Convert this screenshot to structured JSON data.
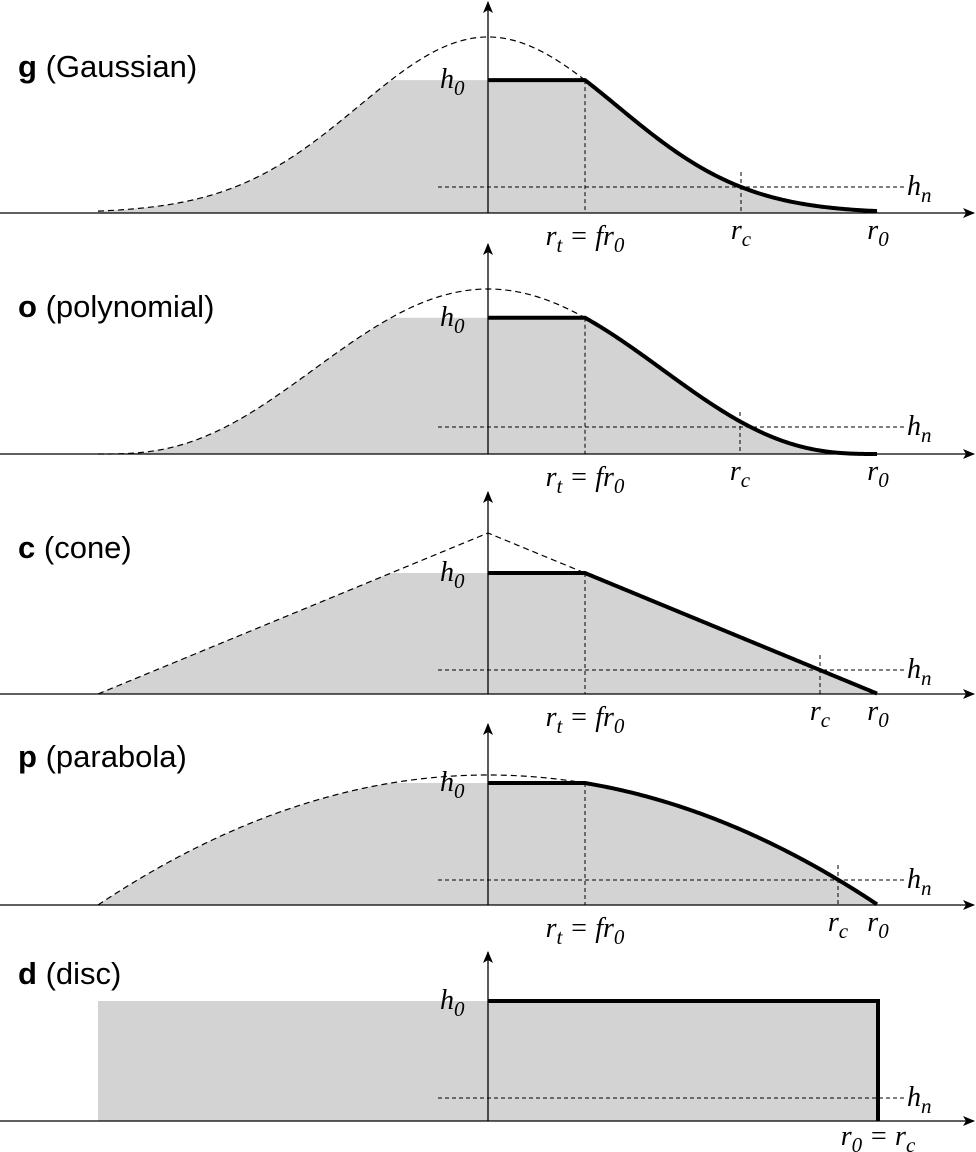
{
  "panels": [
    {
      "letter": "g",
      "name": "(Gaussian)",
      "h0": [
        "h",
        "0"
      ],
      "hn": [
        "h",
        "n"
      ],
      "rt": [
        "r",
        "t",
        " = ",
        "fr",
        "0"
      ],
      "rc": [
        "r",
        "c"
      ],
      "r0": [
        "r",
        "0"
      ]
    },
    {
      "letter": "o",
      "name": "(polynomial)",
      "h0": [
        "h",
        "0"
      ],
      "hn": [
        "h",
        "n"
      ],
      "rt": [
        "r",
        "t",
        " = ",
        "fr",
        "0"
      ],
      "rc": [
        "r",
        "c"
      ],
      "r0": [
        "r",
        "0"
      ]
    },
    {
      "letter": "c",
      "name": "(cone)",
      "h0": [
        "h",
        "0"
      ],
      "hn": [
        "h",
        "n"
      ],
      "rt": [
        "r",
        "t",
        " = ",
        "fr",
        "0"
      ],
      "rc": [
        "r",
        "c"
      ],
      "r0": [
        "r",
        "0"
      ]
    },
    {
      "letter": "p",
      "name": "(parabola)",
      "h0": [
        "h",
        "0"
      ],
      "hn": [
        "h",
        "n"
      ],
      "rt": [
        "r",
        "t",
        " = ",
        "fr",
        "0"
      ],
      "rc": [
        "r",
        "c"
      ],
      "r0": [
        "r",
        "0"
      ]
    },
    {
      "letter": "d",
      "name": "(disc)",
      "h0": [
        "h",
        "0"
      ],
      "hn": [
        "h",
        "n"
      ],
      "r0": [
        "r",
        "0",
        " = ",
        "r",
        "c"
      ]
    }
  ]
}
